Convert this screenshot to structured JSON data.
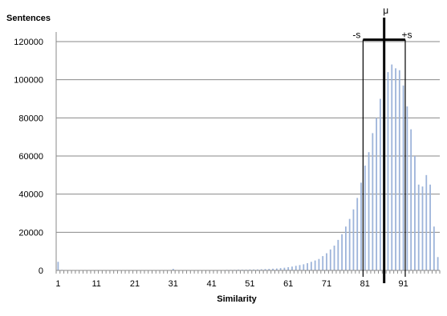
{
  "chart_data": {
    "type": "bar",
    "title": "",
    "ylabel": "Sentences",
    "xlabel": "Similarity",
    "xlim": [
      1,
      100
    ],
    "ylim": [
      0,
      120000
    ],
    "y_ticks": [
      0,
      20000,
      40000,
      60000,
      80000,
      100000,
      120000
    ],
    "x_ticks": [
      1,
      11,
      21,
      31,
      41,
      51,
      61,
      71,
      81,
      91
    ],
    "grid": "horizontal",
    "bar_color": "#9db4da",
    "x": [
      1,
      2,
      3,
      4,
      5,
      6,
      7,
      8,
      9,
      10,
      11,
      12,
      13,
      14,
      15,
      16,
      17,
      18,
      19,
      20,
      21,
      22,
      23,
      24,
      25,
      26,
      27,
      28,
      29,
      30,
      31,
      32,
      33,
      34,
      35,
      36,
      37,
      38,
      39,
      40,
      41,
      42,
      43,
      44,
      45,
      46,
      47,
      48,
      49,
      50,
      51,
      52,
      53,
      54,
      55,
      56,
      57,
      58,
      59,
      60,
      61,
      62,
      63,
      64,
      65,
      66,
      67,
      68,
      69,
      70,
      71,
      72,
      73,
      74,
      75,
      76,
      77,
      78,
      79,
      80,
      81,
      82,
      83,
      84,
      85,
      86,
      87,
      88,
      89,
      90,
      91,
      92,
      93,
      94,
      95,
      96,
      97,
      98,
      99,
      100
    ],
    "values": [
      4500,
      300,
      100,
      50,
      50,
      50,
      50,
      50,
      50,
      50,
      50,
      50,
      50,
      50,
      50,
      50,
      50,
      50,
      50,
      50,
      50,
      50,
      50,
      50,
      50,
      50,
      50,
      50,
      50,
      50,
      800,
      100,
      100,
      100,
      100,
      100,
      100,
      100,
      100,
      100,
      200,
      200,
      200,
      200,
      300,
      300,
      300,
      400,
      400,
      400,
      500,
      500,
      500,
      600,
      700,
      800,
      900,
      1000,
      1200,
      1400,
      1700,
      2000,
      2400,
      2800,
      3200,
      3800,
      4500,
      5200,
      6000,
      7500,
      9000,
      11000,
      13000,
      16000,
      19000,
      23000,
      27000,
      32000,
      38000,
      46000,
      55000,
      62000,
      72000,
      80000,
      90000,
      98000,
      104000,
      108000,
      106000,
      105000,
      97000,
      86000,
      74000,
      60000,
      45000,
      44000,
      50000,
      45000,
      23000,
      7000
    ],
    "annotations": {
      "mean_label": "μ",
      "minus_label": "-s",
      "plus_label": "+s",
      "mean_x": 86,
      "minus_x": 80.5,
      "plus_x": 91.5,
      "bracket_y": 121000
    }
  }
}
